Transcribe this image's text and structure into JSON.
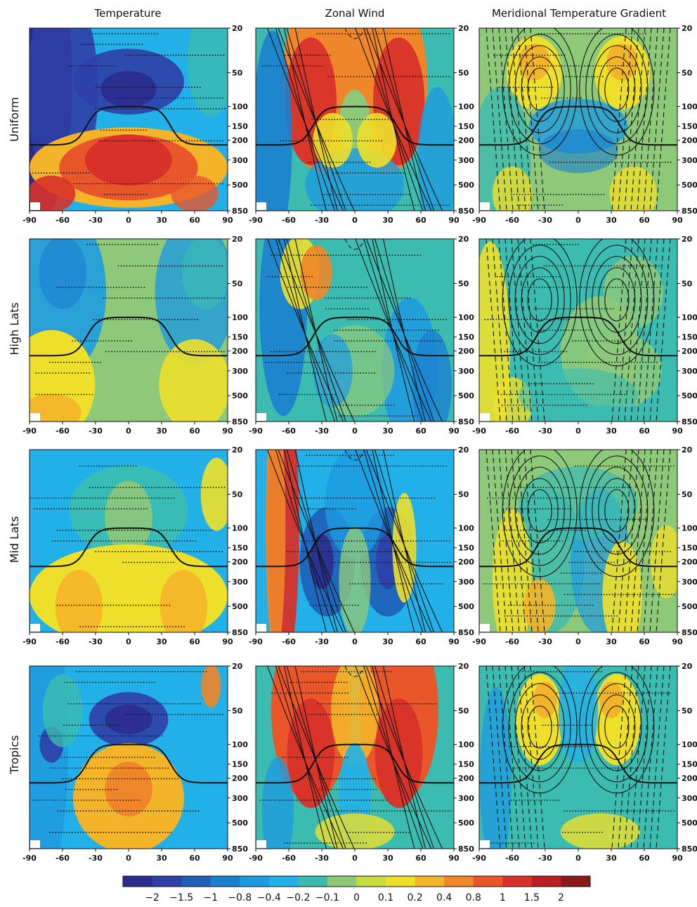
{
  "figure": {
    "column_titles": [
      "Temperature",
      "Zonal Wind",
      "Meridional Temperature Gradient"
    ],
    "row_labels": [
      "Uniform",
      "High Lats",
      "Mid Lats",
      "Tropics"
    ]
  },
  "chart_data": {
    "type": "heatmap",
    "x_ticks": [
      "-90",
      "-60",
      "-30",
      "0",
      "30",
      "60",
      "90"
    ],
    "x_values": [
      -90,
      -60,
      -30,
      0,
      30,
      60,
      90
    ],
    "pressure_ticks": [
      "20",
      "50",
      "100",
      "150",
      "200",
      "300",
      "500",
      "850"
    ],
    "pressure_values": [
      20,
      50,
      100,
      150,
      200,
      300,
      500,
      850
    ],
    "xlim": [
      -90,
      90
    ],
    "ylim_pressure": [
      850,
      20
    ],
    "y_scale": "log",
    "colorbar": {
      "levels": [
        "-2",
        "-1.5",
        "-1",
        "-0.8",
        "-0.4",
        "-0.2",
        "-0.1",
        "0",
        "0.1",
        "0.2",
        "0.4",
        "0.8",
        "1",
        "1.5",
        "2"
      ],
      "colors": [
        "#2c2c8f",
        "#2f3fa8",
        "#1f5fb8",
        "#1a7fd0",
        "#1e9be0",
        "#22b0e8",
        "#3cbcb0",
        "#8ec97a",
        "#c8dc40",
        "#eee02a",
        "#f4b429",
        "#f0862a",
        "#e8562a",
        "#d8312a",
        "#b81e22",
        "#8a1a1a"
      ]
    },
    "panels": [
      {
        "row": "Uniform",
        "column": "Temperature",
        "pattern": "uniform-T"
      },
      {
        "row": "Uniform",
        "column": "Zonal Wind",
        "pattern": "uniform-U"
      },
      {
        "row": "Uniform",
        "column": "Meridional Temperature Gradient",
        "pattern": "uniform-G"
      },
      {
        "row": "High Lats",
        "column": "Temperature",
        "pattern": "high-T"
      },
      {
        "row": "High Lats",
        "column": "Zonal Wind",
        "pattern": "high-U"
      },
      {
        "row": "High Lats",
        "column": "Meridional Temperature Gradient",
        "pattern": "high-G"
      },
      {
        "row": "Mid Lats",
        "column": "Temperature",
        "pattern": "mid-T"
      },
      {
        "row": "Mid Lats",
        "column": "Zonal Wind",
        "pattern": "mid-U"
      },
      {
        "row": "Mid Lats",
        "column": "Meridional Temperature Gradient",
        "pattern": "mid-G"
      },
      {
        "row": "Tropics",
        "column": "Temperature",
        "pattern": "trop-T"
      },
      {
        "row": "Tropics",
        "column": "Zonal Wind",
        "pattern": "trop-U"
      },
      {
        "row": "Tropics",
        "column": "Meridional Temperature Gradient",
        "pattern": "trop-G"
      }
    ]
  }
}
